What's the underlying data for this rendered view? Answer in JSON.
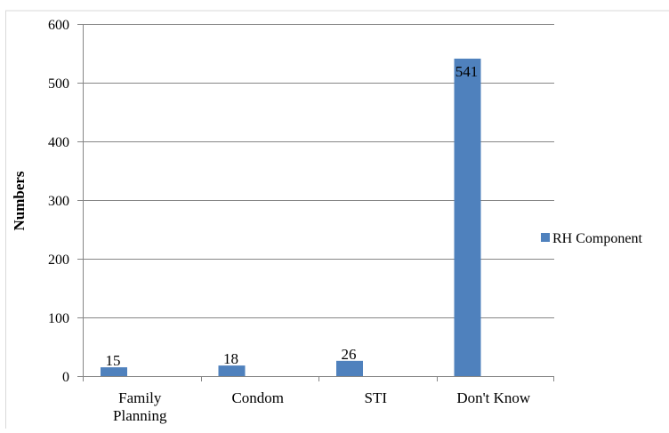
{
  "chart_data": {
    "type": "bar",
    "categories": [
      "Family Planning",
      "Condom",
      "STI",
      "Don't Know"
    ],
    "category_lines": [
      [
        "Family",
        "Planning"
      ],
      [
        "Condom"
      ],
      [
        "STI"
      ],
      [
        "Don't Know"
      ]
    ],
    "series": [
      {
        "name": "RH Component",
        "values": [
          15,
          18,
          26,
          541
        ],
        "color": "#4f81bd"
      }
    ],
    "data_labels": [
      "15",
      "18",
      "26",
      "541"
    ],
    "ylabel": "Numbers",
    "ylim": [
      0,
      600
    ],
    "yticks": [
      0,
      100,
      200,
      300,
      400,
      500,
      600
    ],
    "grid": "horizontal",
    "legend_position": "right"
  }
}
